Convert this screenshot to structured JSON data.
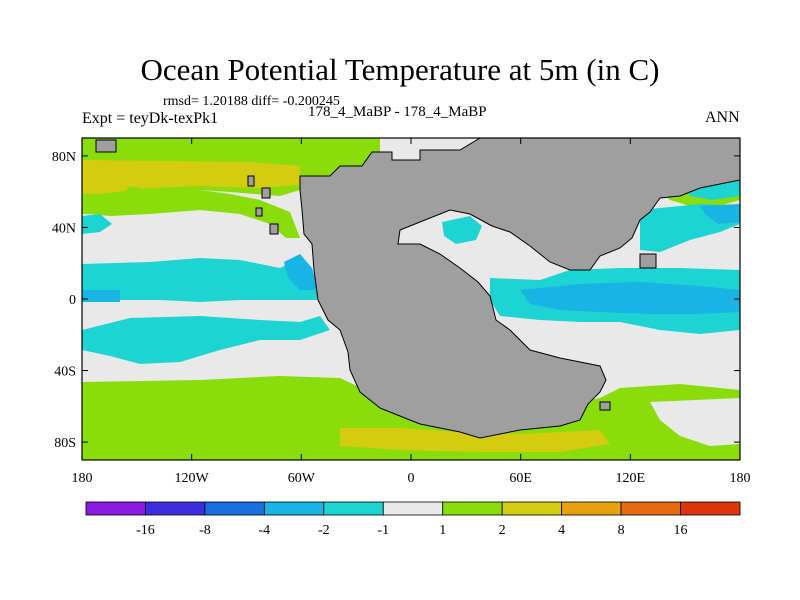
{
  "title": "Ocean Potential Temperature at 5m (in C)",
  "stats": "rmsd= 1.20188  diff= -0.200245",
  "expt": "Expt = teyDk-texPk1",
  "comparison": "178_4_MaBP - 178_4_MaBP",
  "season": "ANN",
  "lat_ticks": [
    {
      "label": "80N",
      "value": 80
    },
    {
      "label": "40N",
      "value": 40
    },
    {
      "label": "0",
      "value": 0
    },
    {
      "label": "40S",
      "value": -40
    },
    {
      "label": "80S",
      "value": -80
    }
  ],
  "lon_ticks": [
    {
      "label": "180",
      "value": -180
    },
    {
      "label": "120W",
      "value": -120
    },
    {
      "label": "60W",
      "value": -60
    },
    {
      "label": "0",
      "value": 0
    },
    {
      "label": "60E",
      "value": 60
    },
    {
      "label": "120E",
      "value": 120
    },
    {
      "label": "180",
      "value": 180
    }
  ],
  "colorbar": {
    "colors": [
      "#8a1be0",
      "#3c2ee0",
      "#1c6fe0",
      "#18b4e3",
      "#1ed4d2",
      "#e9e9e9",
      "#8adc0a",
      "#d4cc10",
      "#e6a010",
      "#e66a10",
      "#e0340c"
    ],
    "labels": [
      "-16",
      "-8",
      "-4",
      "-2",
      "-1",
      "1",
      "2",
      "4",
      "8",
      "16"
    ]
  },
  "land_color": "#9f9f9f",
  "ocean_base_color": "#e9e9e9"
}
